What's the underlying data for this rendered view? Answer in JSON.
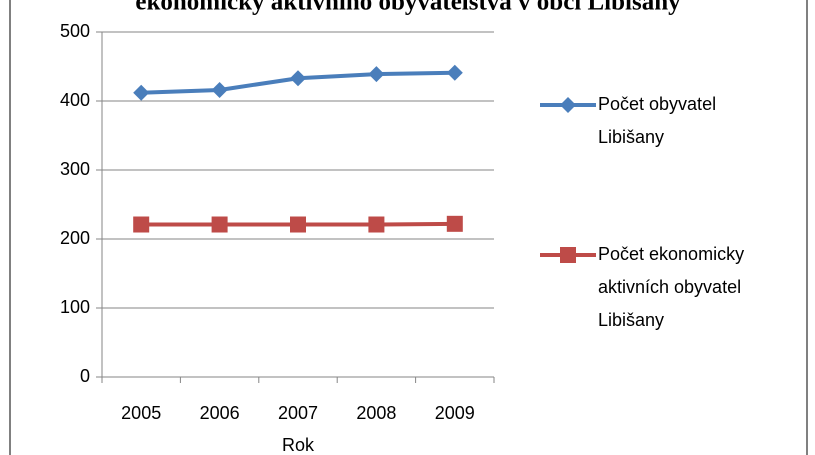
{
  "chart_data": {
    "type": "line",
    "title": "ekonomicky aktivního obyvatelstva v obci Libišany",
    "x_label": "Rok",
    "categories": [
      "2005",
      "2006",
      "2007",
      "2008",
      "2009"
    ],
    "series": [
      {
        "name": "Počet obyvatel Libišany",
        "color": "#4a7ebb",
        "marker": "diamond",
        "values": [
          412,
          416,
          433,
          439,
          441
        ]
      },
      {
        "name": "Počet ekonomicky aktivních obyvatel Libišany",
        "color": "#be4b48",
        "marker": "square",
        "values": [
          221,
          221,
          221,
          221,
          222
        ]
      }
    ],
    "ylim": [
      0,
      500
    ],
    "yticks": [
      0,
      100,
      200,
      300,
      400,
      500
    ],
    "grid": true,
    "legend": "right"
  }
}
